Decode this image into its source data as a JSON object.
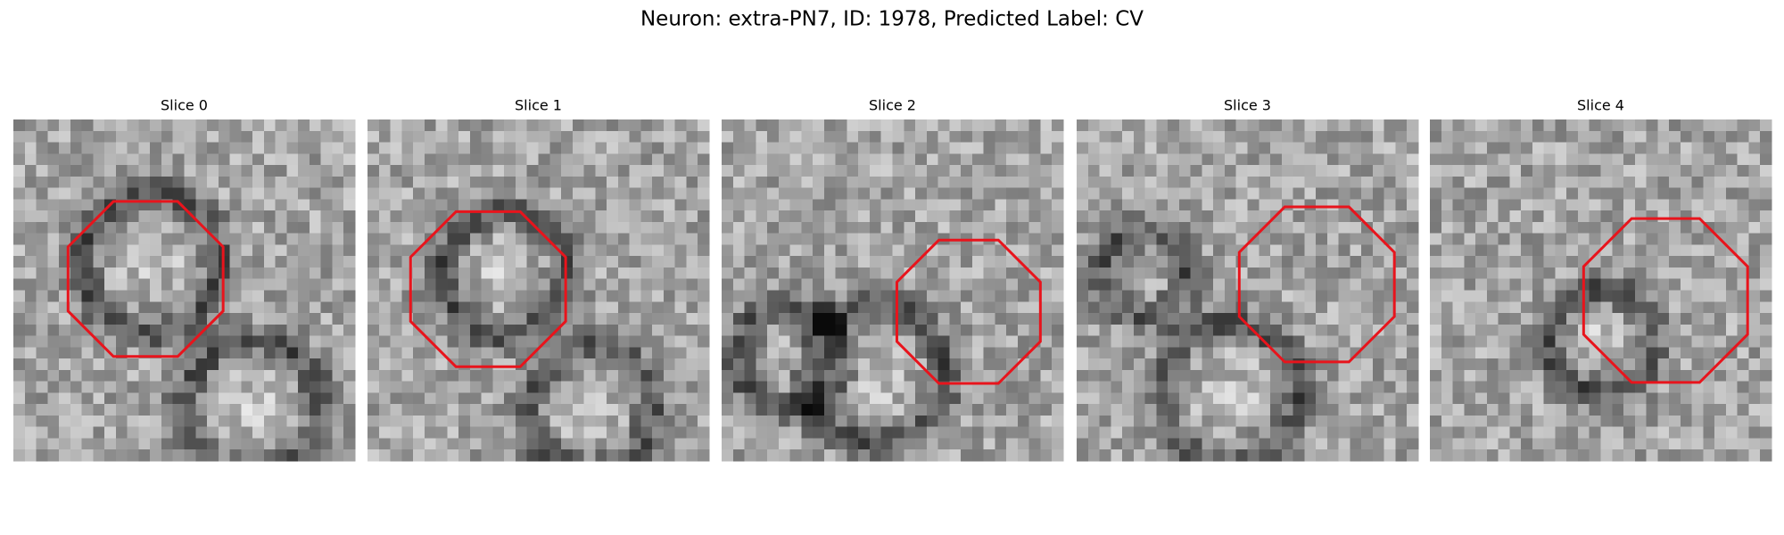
{
  "title": "Neuron: extra-PN7, ID: 1978, Predicted Label: CV",
  "panels": [
    {
      "title": "Slice 0"
    },
    {
      "title": "Slice 1"
    },
    {
      "title": "Slice 2"
    },
    {
      "title": "Slice 3"
    },
    {
      "title": "Slice 4"
    }
  ]
}
